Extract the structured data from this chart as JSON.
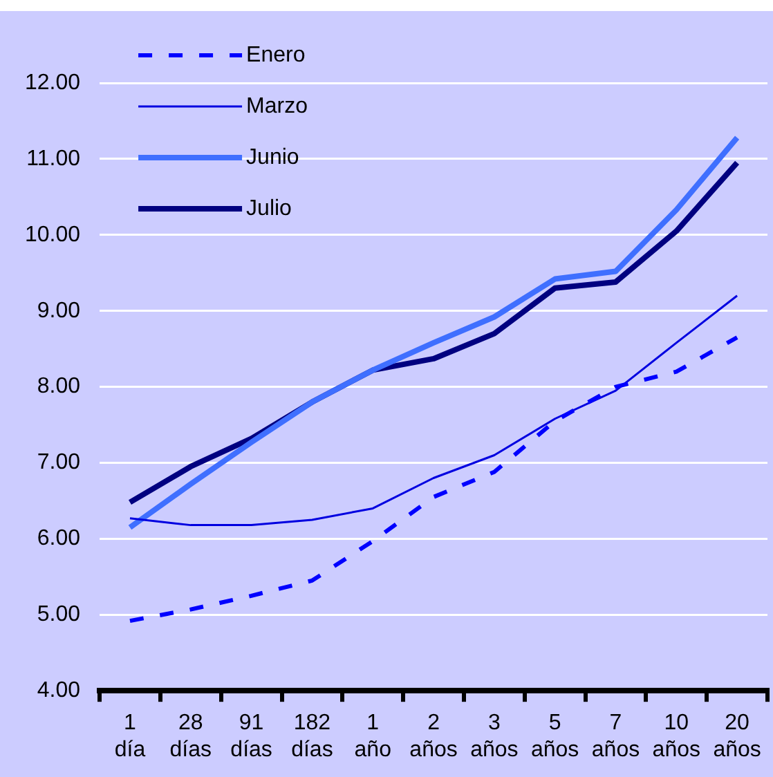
{
  "chart_data": {
    "type": "line",
    "categories": [
      "1 día",
      "28 días",
      "91 días",
      "182 días",
      "1 año",
      "2 años",
      "3 años",
      "5 años",
      "7 años",
      "10 años",
      "20 años"
    ],
    "series": [
      {
        "name": "Enero",
        "color": "#0000ff",
        "line_style": "dashed",
        "values": [
          4.92,
          5.07,
          5.25,
          5.45,
          5.97,
          6.55,
          6.88,
          7.55,
          8.0,
          8.2,
          8.65
        ]
      },
      {
        "name": "Marzo",
        "color": "#0000e0",
        "line_style": "solid",
        "values": [
          6.27,
          6.18,
          6.18,
          6.25,
          6.4,
          6.8,
          7.1,
          7.58,
          7.95,
          8.58,
          9.2
        ]
      },
      {
        "name": "Junio",
        "color": "#3f6fff",
        "line_style": "solid",
        "values": [
          6.15,
          6.72,
          7.27,
          7.8,
          8.22,
          8.58,
          8.92,
          9.42,
          9.52,
          10.33,
          11.28
        ]
      },
      {
        "name": "Julio",
        "color": "#000080",
        "line_style": "solid",
        "values": [
          6.48,
          6.95,
          7.32,
          7.8,
          8.22,
          8.37,
          8.7,
          9.3,
          9.38,
          10.05,
          10.95
        ]
      }
    ],
    "ylim": [
      4,
      12
    ],
    "yticks": [
      {
        "value": 4,
        "label": "4.00"
      },
      {
        "value": 5,
        "label": "5.00"
      },
      {
        "value": 6,
        "label": "6.00"
      },
      {
        "value": 7,
        "label": "7.00"
      },
      {
        "value": 8,
        "label": "8.00"
      },
      {
        "value": 9,
        "label": "9.00"
      },
      {
        "value": 10,
        "label": "10.00"
      },
      {
        "value": 11,
        "label": "11.00"
      },
      {
        "value": 12,
        "label": "12.00"
      }
    ],
    "grid": "y",
    "legend": "top left",
    "marker": "none"
  }
}
